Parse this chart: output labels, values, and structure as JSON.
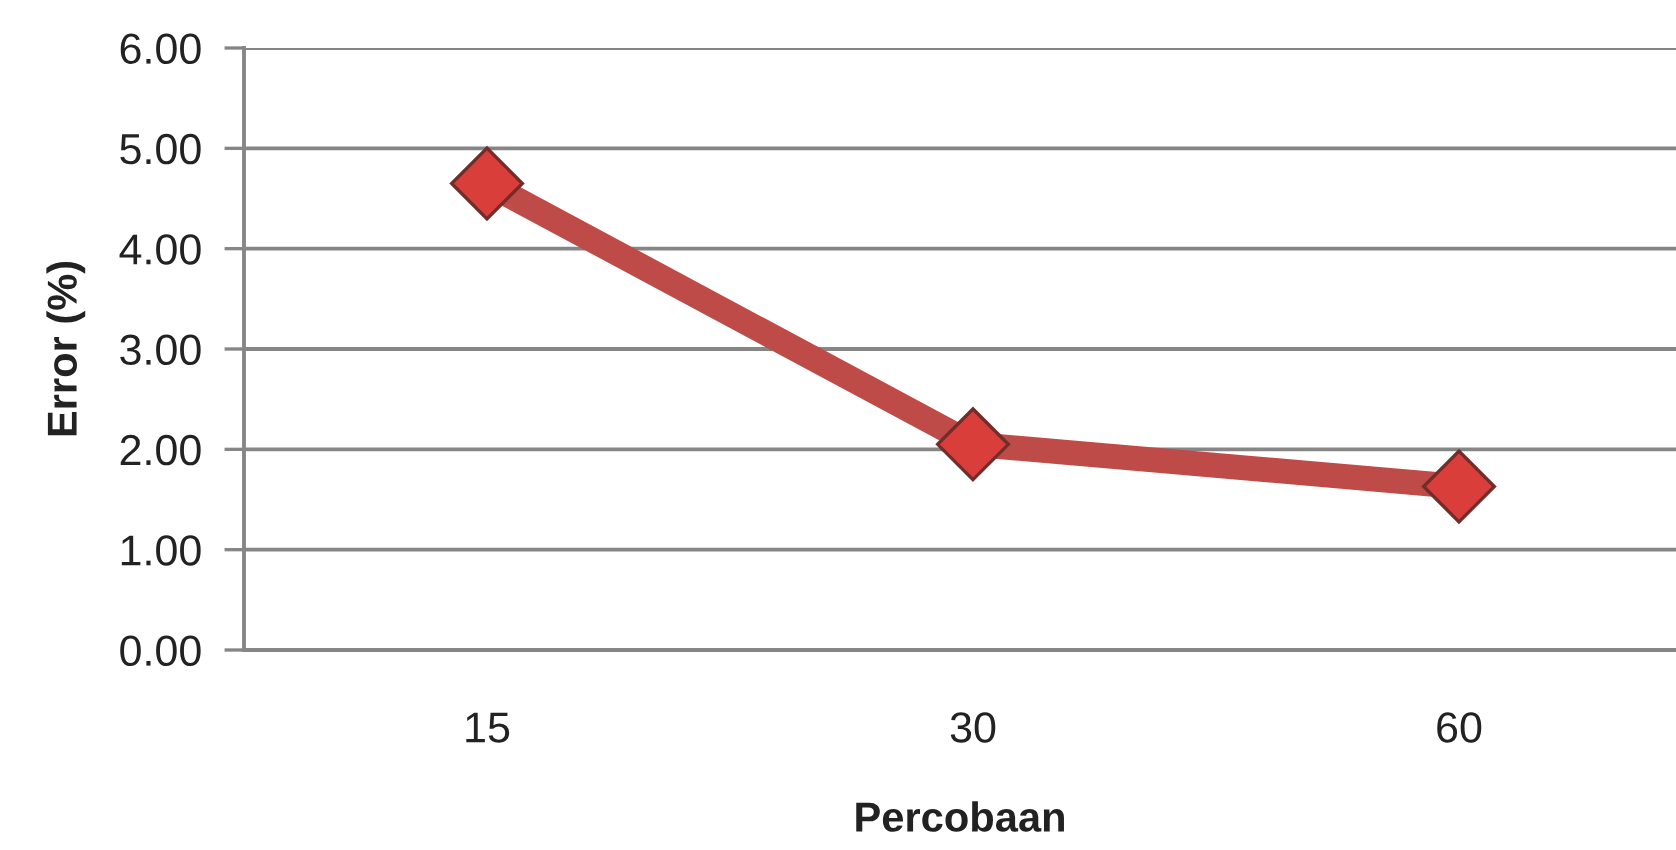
{
  "chart_data": {
    "type": "line",
    "xlabel": "Percobaan",
    "ylabel": "Error (%)",
    "categories": [
      "15",
      "30",
      "60"
    ],
    "series": [
      {
        "color": "#be4b48",
        "values": [
          4.65,
          2.05,
          1.63
        ]
      }
    ],
    "ylim": [
      0,
      6
    ],
    "yticks": [
      {
        "value": 0,
        "label": "0.00"
      },
      {
        "value": 1,
        "label": "1.00"
      },
      {
        "value": 2,
        "label": "2.00"
      },
      {
        "value": 3,
        "label": "3.00"
      },
      {
        "value": 4,
        "label": "4.00"
      },
      {
        "value": 5,
        "label": "5.00"
      },
      {
        "value": 6,
        "label": "6.00"
      }
    ],
    "grid": "y",
    "marker": "diamond",
    "line_style": "solid"
  }
}
